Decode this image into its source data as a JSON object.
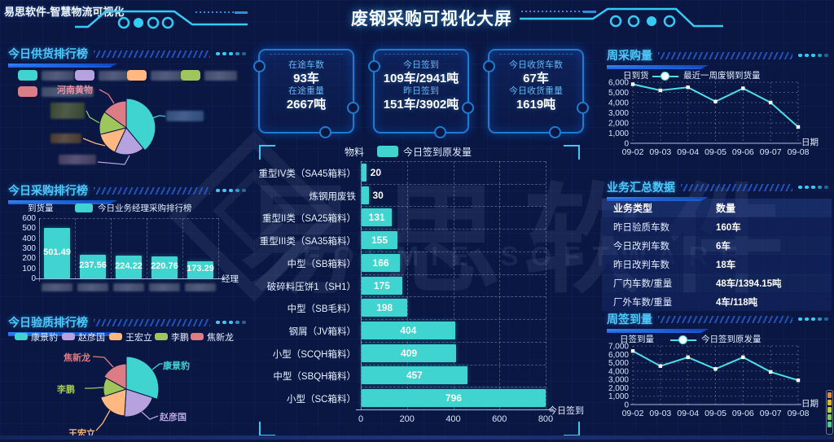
{
  "colors": {
    "background": "#0A1743",
    "section_title": "#4FC8F7",
    "bar_teal": "#3FD4CF",
    "line_cyan": "#4AE0E6",
    "underline_blue": "#1565E0",
    "stat_label_blue": "#63B8F5",
    "pie_palette": [
      "#3FD4CF",
      "#B6A2DE",
      "#FFB980",
      "#9FC65B",
      "#DC7C84"
    ]
  },
  "header": {
    "logo": "易思软件-智慧物流可视化",
    "title": "废钢采购可视化大屏"
  },
  "watermark": {
    "cn": "易思软件",
    "en": "EOSMIE SOFTWARE"
  },
  "stat_cards": [
    {
      "rows": [
        {
          "label": "在途车数",
          "value": "93车"
        },
        {
          "label": "在途重量",
          "value": "2667吨"
        }
      ]
    },
    {
      "rows": [
        {
          "label": "今日签到",
          "value": "109车/2941吨"
        },
        {
          "label": "昨日签到",
          "value": "151车/3902吨"
        }
      ]
    },
    {
      "rows": [
        {
          "label": "今日收货车数",
          "value": "67车"
        },
        {
          "label": "今日收货重量",
          "value": "1619吨"
        }
      ]
    }
  ],
  "sections": {
    "supply": {
      "title": "今日供货排行榜"
    },
    "purchase": {
      "title": "今日采购排行榜"
    },
    "quality": {
      "title": "今日验质排行榜"
    },
    "weekly_purchase": {
      "title": "周采购量"
    },
    "summary": {
      "title": "业务汇总数据"
    },
    "weekly_signin": {
      "title": "周签到量"
    }
  },
  "chart_data": [
    {
      "id": "supply_pie",
      "type": "pie",
      "title": "今日供货排行榜",
      "legend_position": "top",
      "note": "legend labels and four pie callouts are blurred in the source image",
      "slices": [
        {
          "label": "",
          "redacted": true,
          "value": 39,
          "color": "#3FD4CF"
        },
        {
          "label": "",
          "redacted": true,
          "value": 18,
          "color": "#B6A2DE"
        },
        {
          "label": "",
          "redacted": true,
          "value": 14,
          "color": "#FFB980"
        },
        {
          "label": "",
          "redacted": true,
          "value": 14,
          "color": "#9FC65B"
        },
        {
          "label": "河南黄物",
          "redacted": false,
          "value": 15,
          "color": "#DC7C84"
        }
      ]
    },
    {
      "id": "purchase_bar",
      "type": "bar",
      "title": "今日采购排行榜",
      "ylabel": "到货量",
      "xlabel": "经理",
      "legend": "今日业务经理采购排行榜",
      "ylim": [
        0,
        600
      ],
      "ytick_step": 100,
      "categories": [
        "",
        "",
        "",
        "",
        ""
      ],
      "categories_redacted": true,
      "values": [
        501.49,
        237.56,
        224.22,
        220.76,
        173.29
      ],
      "bar_color": "#3FD4CF"
    },
    {
      "id": "quality_pie",
      "type": "pie",
      "subtype": "rose",
      "title": "今日验质排行榜",
      "slices": [
        {
          "label": "康景豹",
          "value": 30,
          "color": "#3FD4CF"
        },
        {
          "label": "赵彦国",
          "value": 21,
          "color": "#B6A2DE"
        },
        {
          "label": "王宏立",
          "value": 19,
          "color": "#FFB980"
        },
        {
          "label": "李鹏",
          "value": 13,
          "color": "#9FC65B"
        },
        {
          "label": "焦新龙",
          "value": 17,
          "color": "#DC7C84"
        }
      ]
    },
    {
      "id": "material_bar",
      "type": "bar",
      "orientation": "horizontal",
      "ylabel": "物料",
      "xlabel": "今日签到",
      "legend": "今日签到原发量",
      "xlim": [
        0,
        800
      ],
      "xtick_step": 200,
      "categories": [
        "重型IV类（SA45箱料）",
        "炼钢用废铁",
        "重型II类（SA25箱料）",
        "重型III类（SA35箱料）",
        "中型（SB箱料）",
        "破碎料压饼1（SH1）",
        "中型（SB毛料）",
        "钢屑（JV箱料）",
        "小型（SCQH箱料）",
        "中型（SBQH箱料）",
        "小型（SC箱料）"
      ],
      "values": [
        20,
        30,
        131,
        155,
        166,
        175,
        198,
        404,
        409,
        457,
        796
      ],
      "bar_color": "#3FD4CF"
    },
    {
      "id": "weekly_purchase_line",
      "type": "line",
      "title": "周采购量",
      "ylabel": "日到货",
      "xlabel": "日期",
      "legend": "最近一周废钢到货量",
      "ylim": [
        0,
        6000
      ],
      "ytick_step": 1000,
      "x": [
        "09-02",
        "09-03",
        "09-04",
        "09-05",
        "09-06",
        "09-07",
        "09-08"
      ],
      "values": [
        5800,
        5200,
        5500,
        4100,
        5400,
        4000,
        1600
      ],
      "line_color": "#4AE0E6"
    },
    {
      "id": "summary_table",
      "type": "table",
      "title": "业务汇总数据",
      "headers": [
        "业务类型",
        "数量"
      ],
      "rows": [
        [
          "昨日验质车数",
          "160车"
        ],
        [
          "今日改判车数",
          "6车"
        ],
        [
          "昨日改判车数",
          "18车"
        ],
        [
          "厂内车数/重量",
          "48车/1394.15吨"
        ],
        [
          "厂外车数/重量",
          "4车/118吨"
        ]
      ]
    },
    {
      "id": "weekly_signin_line",
      "type": "line",
      "title": "周签到量",
      "ylabel": "日签到量",
      "xlabel": "日期",
      "legend": "今日签到原发量",
      "ylim": [
        0,
        7000
      ],
      "ytick_step": 1000,
      "x": [
        "09-02",
        "09-03",
        "09-04",
        "09-05",
        "09-06",
        "09-07",
        "09-08"
      ],
      "values": [
        6400,
        4600,
        5650,
        4250,
        5650,
        3900,
        2900
      ],
      "line_color": "#4AE0E6"
    }
  ]
}
